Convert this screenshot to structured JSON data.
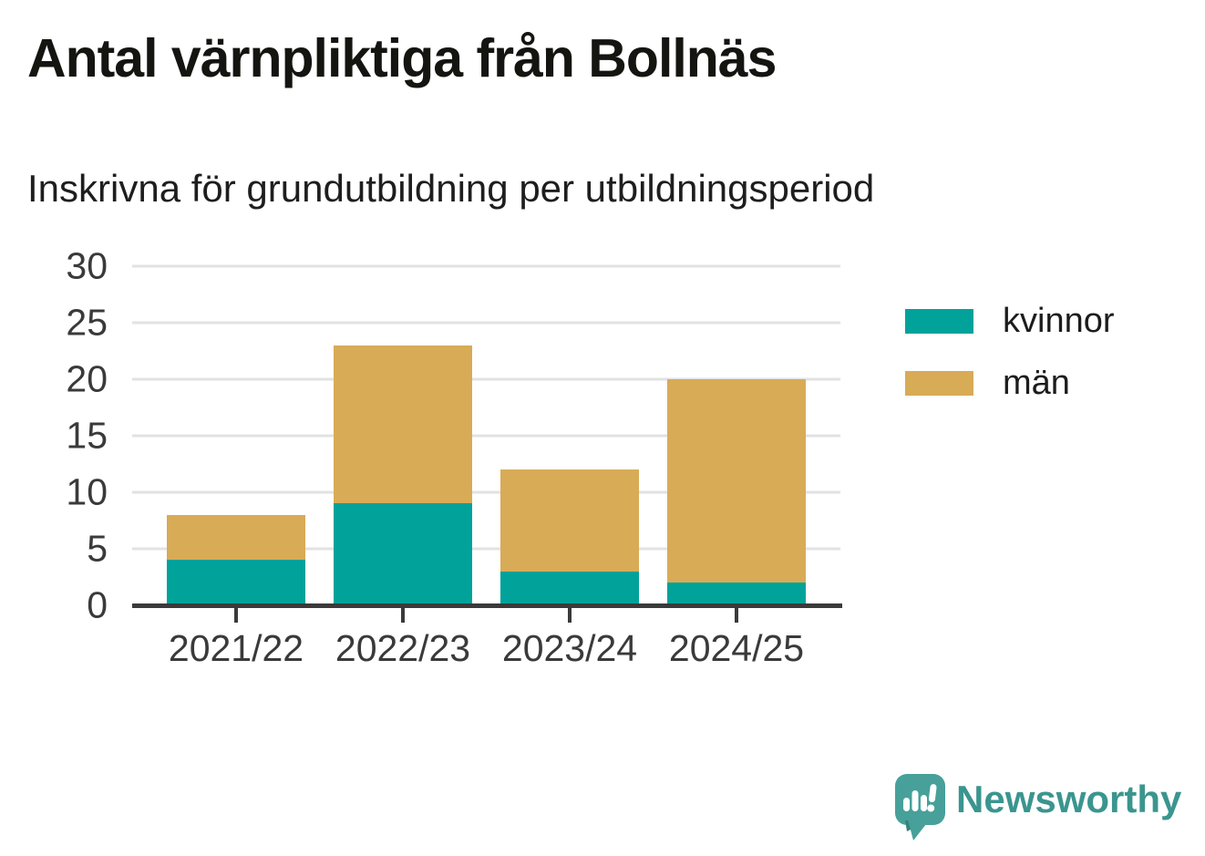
{
  "title": "Antal värnpliktiga från Bollnäs",
  "subtitle": "Inskrivna för grundutbildning per utbildningsperiod",
  "chart_data": {
    "type": "bar",
    "stacked": true,
    "title": "Antal värnpliktiga från Bollnäs",
    "subtitle": "Inskrivna för grundutbildning per utbildningsperiod",
    "categories": [
      "2021/22",
      "2022/23",
      "2023/24",
      "2024/25"
    ],
    "series": [
      {
        "name": "kvinnor",
        "color": "#00A29A",
        "values": [
          4,
          9,
          3,
          2
        ]
      },
      {
        "name": "män",
        "color": "#D8AB57",
        "values": [
          4,
          14,
          9,
          18
        ]
      }
    ],
    "totals": [
      8,
      23,
      12,
      20
    ],
    "xlabel": "",
    "ylabel": "",
    "ylim": [
      0,
      30
    ],
    "yticks": [
      0,
      5,
      10,
      15,
      20,
      25,
      30
    ],
    "grid": true,
    "legend_position": "right"
  },
  "colors": {
    "kvinnor": "#00A29A",
    "man": "#D8AB57",
    "gridline": "#E2E2E2",
    "axis": "#3A3A3A",
    "title_text": "#141411",
    "brand_teal": "#3B958F"
  },
  "branding": {
    "logo_text": "Newsworthy"
  }
}
